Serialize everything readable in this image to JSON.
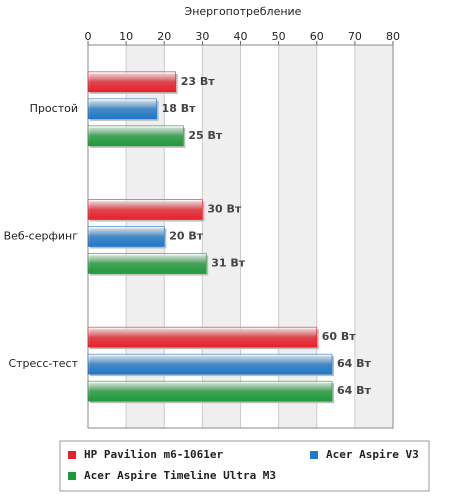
{
  "chart_data": {
    "type": "hbar",
    "title": "Энергопотребление",
    "categories": [
      "Простой",
      "Веб-серфинг",
      "Стресс-тест"
    ],
    "series": [
      {
        "name": "HP Pavilion m6-1061er",
        "color": "#e8202a",
        "values": [
          23,
          30,
          60
        ],
        "value_labels": [
          "23 Вт",
          "30 Вт",
          "60 Вт"
        ]
      },
      {
        "name": "Acer Aspire V3",
        "color": "#1f78c8",
        "values": [
          18,
          20,
          64
        ],
        "value_labels": [
          "18 Вт",
          "20 Вт",
          "64 Вт"
        ]
      },
      {
        "name": "Acer Aspire Timeline Ultra M3",
        "color": "#1e9a3a",
        "values": [
          25,
          31,
          64
        ],
        "value_labels": [
          "25 Вт",
          "31 Вт",
          "64 Вт"
        ]
      }
    ],
    "xlim": [
      0,
      80
    ],
    "xticks": [
      0,
      10,
      20,
      30,
      40,
      50,
      60,
      70,
      80
    ],
    "grid": true
  }
}
